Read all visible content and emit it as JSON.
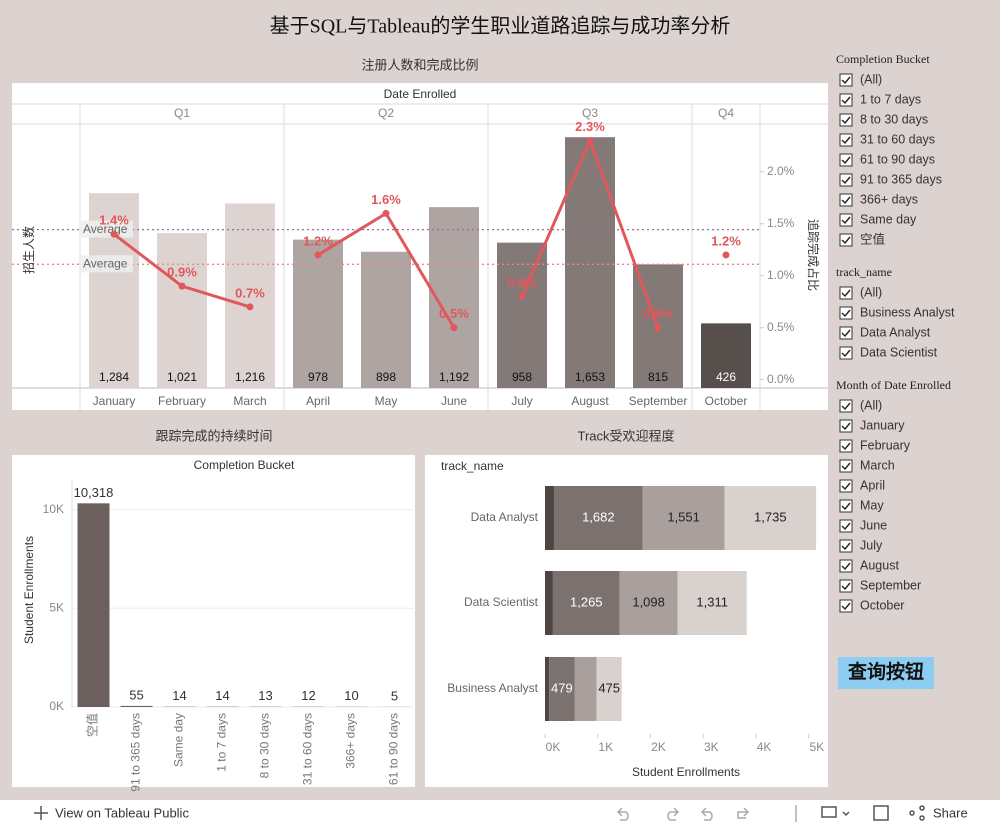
{
  "title": "基于SQL与Tableau的学生职业道路追踪与成功率分析",
  "chart_data": [
    {
      "type": "combo",
      "title": "注册人数和完成比例",
      "header": "Date Enrolled",
      "ylabel": "招生人数",
      "y2label": "追踪完成占比",
      "categories": [
        "January",
        "February",
        "March",
        "April",
        "May",
        "June",
        "July",
        "August",
        "September",
        "October"
      ],
      "quarters": [
        "Q1",
        "Q1",
        "Q1",
        "Q2",
        "Q2",
        "Q2",
        "Q3",
        "Q3",
        "Q3",
        "Q4"
      ],
      "series": [
        {
          "values": [
            1284,
            1021,
            1216,
            978,
            898,
            1192,
            958,
            1653,
            815,
            426
          ],
          "value_labels": [
            "1,284",
            "1,021",
            "1,216",
            "978",
            "898",
            "1,192",
            "958",
            "1,653",
            "815",
            "426"
          ],
          "colors": [
            "#ddd4d1",
            "#ddd4d1",
            "#ddd4d1",
            "#aea4a1",
            "#aea4a1",
            "#aea4a1",
            "#837a77",
            "#837a77",
            "#837a77",
            "#574f4c"
          ]
        },
        {
          "axis": "y2",
          "color": "#e0585b",
          "values": [
            1.4,
            0.9,
            0.7,
            1.2,
            1.6,
            0.5,
            0.8,
            2.3,
            0.5,
            1.2
          ],
          "value_labels": [
            "1.4%",
            "0.9%",
            "0.7%",
            "1.2%",
            "1.6%",
            "0.5%",
            "0.8%",
            "2.3%",
            "0.5%",
            "1.2%"
          ]
        }
      ],
      "ylim": [
        0,
        1740
      ],
      "y2lim": [
        -0.08,
        2.46
      ],
      "y2ticks": [
        {
          "value": 0,
          "label": "0.0%"
        },
        {
          "value": 0.5,
          "label": "0.5%"
        },
        {
          "value": 1,
          "label": "1.0%"
        },
        {
          "value": 1.5,
          "label": "1.5%"
        },
        {
          "value": 2,
          "label": "2.0%"
        }
      ],
      "reference_lines": [
        {
          "label": "Average",
          "value": 1044,
          "axis": "y",
          "color": "#9a6fa0"
        },
        {
          "label": "Average",
          "value": 1.11,
          "axis": "y2",
          "color": "#e58a8c"
        }
      ]
    },
    {
      "type": "bar",
      "title": "跟踪完成的持续时间",
      "header": "Completion Bucket",
      "ylabel": "Student Enrollments",
      "categories": [
        "空值",
        "91 to 365 days",
        "Same day",
        "1 to 7 days",
        "8 to 30 days",
        "31 to 60 days",
        "366+ days",
        "61 to 90 days"
      ],
      "values": [
        10318,
        55,
        14,
        14,
        13,
        12,
        10,
        5
      ],
      "value_labels": [
        "10,318",
        "55",
        "14",
        "14",
        "13",
        "12",
        "10",
        "5"
      ],
      "color": "#6b605d",
      "ylim": [
        0,
        11500
      ],
      "grid": true,
      "yticks": [
        {
          "value": 0,
          "label": "0K"
        },
        {
          "value": 5000,
          "label": "5K"
        },
        {
          "value": 10000,
          "label": "10K"
        }
      ]
    },
    {
      "type": "stackedbar",
      "title": "Track受欢迎程度",
      "header": "track_name",
      "xlabel": "Student Enrollments",
      "categories": [
        "Data Analyst",
        "Data Scientist",
        "Business Analyst"
      ],
      "series": [
        {
          "color": "#4e4543",
          "values": [
            170,
            150,
            80
          ],
          "value_labels": [
            null,
            null,
            null
          ]
        },
        {
          "color": "#7b716e",
          "values": [
            1682,
            1265,
            479
          ],
          "value_labels": [
            "1,682",
            "1,265",
            "479"
          ]
        },
        {
          "color": "#a9a09d",
          "values": [
            1551,
            1098,
            420
          ],
          "value_labels": [
            "1,551",
            "1,098",
            null
          ]
        },
        {
          "color": "#d9d1ce",
          "values": [
            1735,
            1311,
            475
          ],
          "value_labels": [
            "1,735",
            "1,311",
            "475"
          ]
        }
      ],
      "xlim": [
        0,
        5250
      ],
      "xticks": [
        {
          "value": 0,
          "label": "0K"
        },
        {
          "value": 1000,
          "label": "1K"
        },
        {
          "value": 2000,
          "label": "2K"
        },
        {
          "value": 3000,
          "label": "3K"
        },
        {
          "value": 4000,
          "label": "4K"
        },
        {
          "value": 5000,
          "label": "5K"
        }
      ]
    }
  ],
  "filters": [
    {
      "title": "Completion Bucket",
      "options": [
        "(All)",
        "1 to 7 days",
        "8 to 30 days",
        "31 to 60 days",
        "61 to 90 days",
        "91 to 365 days",
        "366+ days",
        "Same day",
        "空值"
      ]
    },
    {
      "title": "track_name",
      "options": [
        "(All)",
        "Business Analyst",
        "Data Analyst",
        "Data Scientist"
      ]
    },
    {
      "title": "Month of Date Enrolled",
      "options": [
        "(All)",
        "January",
        "February",
        "March",
        "April",
        "May",
        "June",
        "July",
        "August",
        "September",
        "October"
      ]
    }
  ],
  "button": "查询按钮",
  "toolbar": {
    "view": "View on Tableau Public",
    "share": "Share"
  }
}
